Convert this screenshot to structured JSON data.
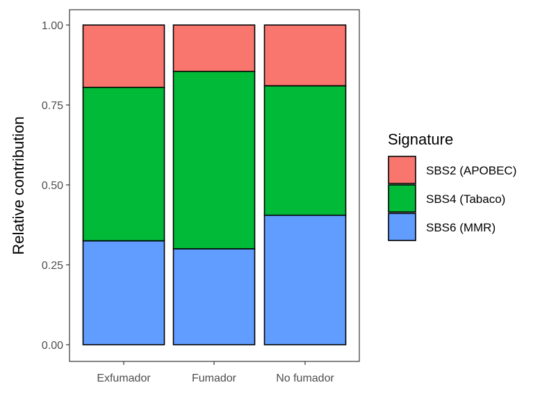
{
  "chart_data": {
    "type": "bar",
    "stacked": true,
    "categories": [
      "Exfumador",
      "Fumador",
      "No fumador"
    ],
    "series": [
      {
        "name": "SBS6 (MMR)",
        "color": "#619CFF",
        "values": [
          0.325,
          0.3,
          0.405
        ]
      },
      {
        "name": "SBS4 (Tabaco)",
        "color": "#00BA38",
        "values": [
          0.48,
          0.555,
          0.405
        ]
      },
      {
        "name": "SBS2 (APOBEC)",
        "color": "#F8766D",
        "values": [
          0.195,
          0.145,
          0.19
        ]
      }
    ],
    "ylabel": "Relative contribution",
    "xlabel": "",
    "ylim": [
      0,
      1
    ],
    "yticks": [
      "0.00",
      "0.25",
      "0.50",
      "0.75",
      "1.00"
    ],
    "ytick_values": [
      0,
      0.25,
      0.5,
      0.75,
      1
    ],
    "grid": false,
    "legend": {
      "title": "Signature",
      "position": "right",
      "entries": [
        "SBS2 (APOBEC)",
        "SBS4 (Tabaco)",
        "SBS6 (MMR)"
      ]
    }
  }
}
